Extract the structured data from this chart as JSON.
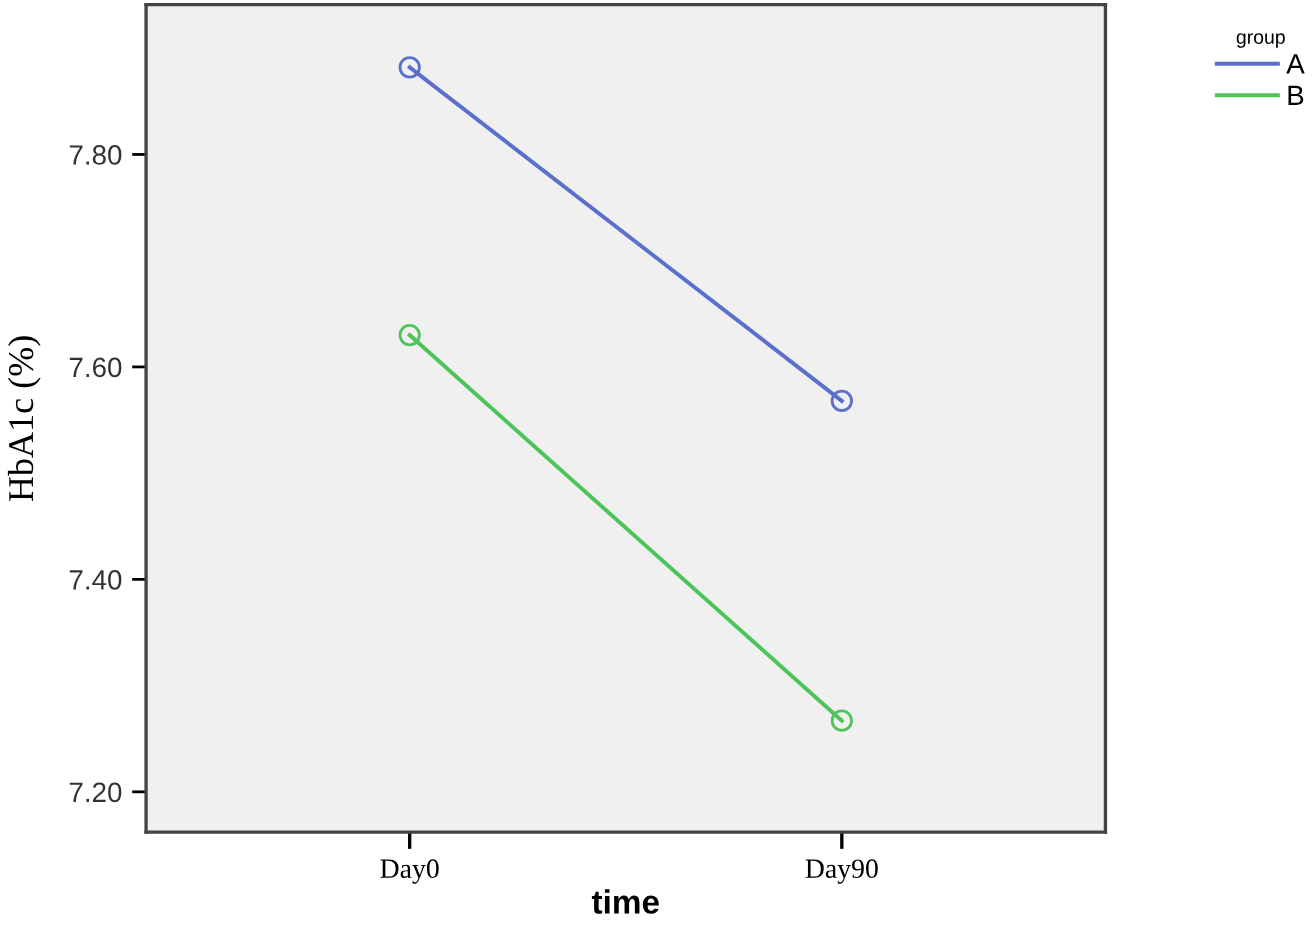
{
  "chart_data": {
    "type": "line",
    "xlabel": "time",
    "ylabel": "HbA1c (%)",
    "legend_title": "group",
    "categories": [
      "Day0",
      "Day90"
    ],
    "series": [
      {
        "name": "A",
        "color": "#5b6fcc",
        "values": [
          7.882,
          7.568
        ]
      },
      {
        "name": "B",
        "color": "#4cc45a",
        "values": [
          7.63,
          7.267
        ]
      }
    ],
    "ylim": [
      7.162,
      7.941
    ],
    "yticks": [
      {
        "value": 7.2,
        "label": "7.20"
      },
      {
        "value": 7.4,
        "label": "7.40"
      },
      {
        "value": 7.6,
        "label": "7.60"
      },
      {
        "value": 7.8,
        "label": "7.80"
      }
    ],
    "grid": false,
    "legend": "top right",
    "marker": "circle",
    "line_style": "solid"
  }
}
